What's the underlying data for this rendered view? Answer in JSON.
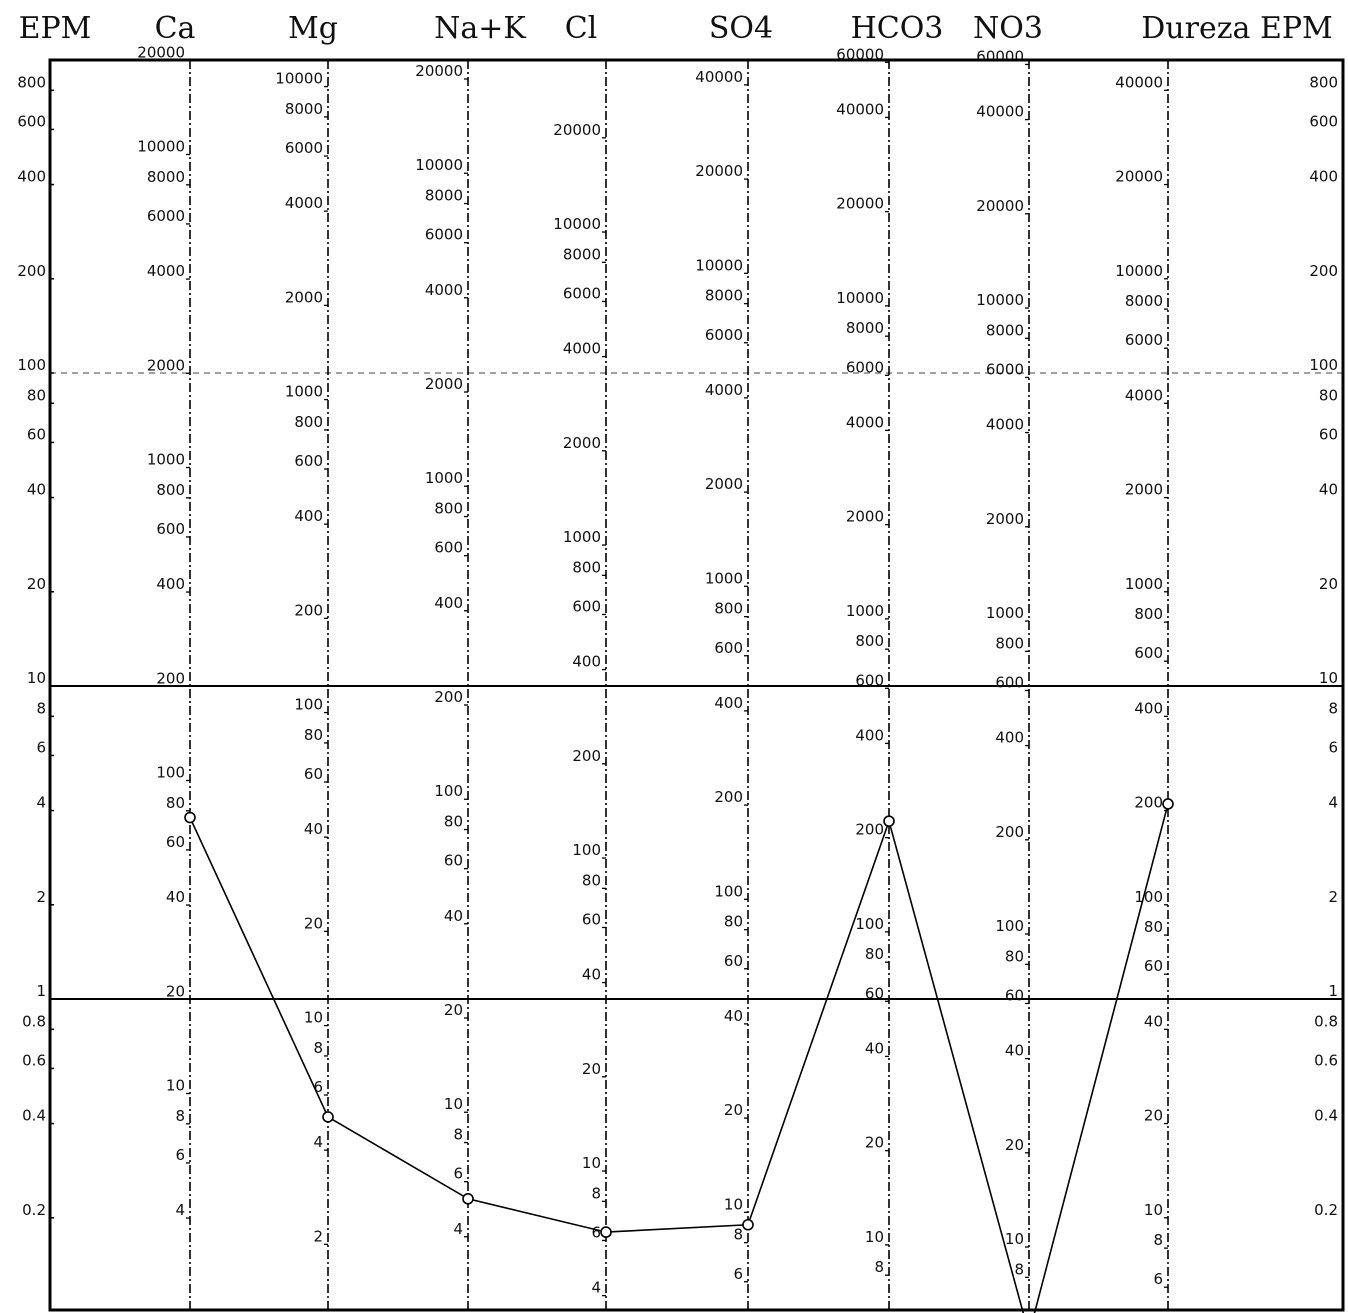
{
  "chart_data": {
    "type": "line",
    "title": "",
    "headers": [
      "EPM",
      "Ca",
      "Mg",
      "Na+K",
      "Cl",
      "SO4",
      "HCO3",
      "NO3",
      "Dureza EPM"
    ],
    "epm_axis": {
      "scale": "log",
      "range": [
        0.11,
        1000
      ],
      "left_ticks": [
        "800",
        "600",
        "400",
        "200",
        "100",
        "80",
        "60",
        "40",
        "20",
        "10",
        "8",
        "6",
        "4",
        "2",
        "1",
        "0.8",
        "0.6",
        "0.4",
        "0.2"
      ],
      "right_ticks": [
        "800",
        "600",
        "400",
        "200",
        "100",
        "80",
        "60",
        "40",
        "20",
        "10",
        "8",
        "6",
        "4",
        "2",
        "1",
        "0.8",
        "0.6",
        "0.4",
        "0.2"
      ]
    },
    "columns": [
      {
        "name": "Ca",
        "factor": 20.04,
        "ticks": [
          "20000",
          "10000",
          "8000",
          "6000",
          "4000",
          "2000",
          "1000",
          "800",
          "600",
          "400",
          "200",
          "100",
          "80",
          "60",
          "40",
          "20",
          "10",
          "8",
          "6",
          "4"
        ]
      },
      {
        "name": "Mg",
        "factor": 12.16,
        "ticks": [
          "10000",
          "8000",
          "6000",
          "4000",
          "2000",
          "1000",
          "800",
          "600",
          "400",
          "200",
          "100",
          "80",
          "60",
          "40",
          "20",
          "10",
          "8",
          "6",
          "4",
          "2"
        ]
      },
      {
        "name": "Na+K",
        "factor": 23.0,
        "ticks": [
          "20000",
          "10000",
          "8000",
          "6000",
          "4000",
          "2000",
          "1000",
          "800",
          "600",
          "400",
          "200",
          "100",
          "80",
          "60",
          "40",
          "20",
          "10",
          "8",
          "6",
          "4"
        ]
      },
      {
        "name": "Cl",
        "factor": 35.45,
        "ticks": [
          "20000",
          "10000",
          "8000",
          "6000",
          "4000",
          "2000",
          "1000",
          "800",
          "600",
          "400",
          "200",
          "100",
          "80",
          "60",
          "40",
          "20",
          "10",
          "8",
          "6",
          "4"
        ]
      },
      {
        "name": "SO4",
        "factor": 48.03,
        "ticks": [
          "40000",
          "20000",
          "10000",
          "8000",
          "6000",
          "4000",
          "2000",
          "1000",
          "800",
          "600",
          "400",
          "200",
          "100",
          "80",
          "60",
          "40",
          "20",
          "10",
          "8",
          "6"
        ]
      },
      {
        "name": "HCO3",
        "factor": 61.02,
        "ticks": [
          "60000",
          "40000",
          "20000",
          "10000",
          "8000",
          "6000",
          "4000",
          "2000",
          "1000",
          "800",
          "600",
          "400",
          "200",
          "100",
          "80",
          "60",
          "40",
          "20",
          "10",
          "8"
        ]
      },
      {
        "name": "NO3",
        "factor": 62.0,
        "ticks": [
          "60000",
          "40000",
          "20000",
          "10000",
          "8000",
          "6000",
          "4000",
          "2000",
          "1000",
          "800",
          "600",
          "400",
          "200",
          "100",
          "80",
          "60",
          "40",
          "20",
          "10",
          "8"
        ]
      },
      {
        "name": "Dureza",
        "factor": 50.0,
        "ticks": [
          "40000",
          "20000",
          "10000",
          "8000",
          "6000",
          "4000",
          "2000",
          "1000",
          "800",
          "600",
          "400",
          "200",
          "100",
          "80",
          "60",
          "40",
          "20",
          "10",
          "8",
          "6"
        ]
      }
    ],
    "series": [
      {
        "values": [
          3.8,
          0.42,
          0.23,
          0.18,
          0.19,
          3.7,
          0.085,
          4.2
        ]
      }
    ]
  }
}
